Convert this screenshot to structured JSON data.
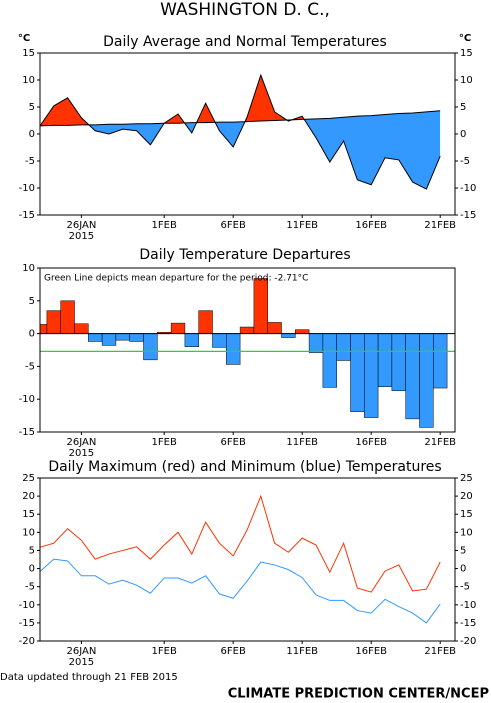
{
  "page": {
    "title": "WASHINGTON D. C.,",
    "updated": "Data updated through 21 FEB 2015",
    "credit": "CLIMATE PREDICTION CENTER/NCEP"
  },
  "chart_data": [
    {
      "type": "departure_area",
      "title": "Daily Average and Normal Temperatures",
      "ylabel": "°C",
      "right_ticks": true,
      "categories": [
        null,
        null,
        null,
        "26JAN",
        null,
        null,
        null,
        null,
        null,
        "1FEB",
        null,
        null,
        null,
        null,
        "6FEB",
        null,
        null,
        null,
        null,
        "11FEB",
        null,
        null,
        null,
        null,
        "16FEB",
        null,
        null,
        null,
        null,
        "21FEB"
      ],
      "year": "2015",
      "above_color": "#ff3300",
      "below_color": "#3399ff",
      "series": [
        {
          "color": "#000000",
          "values": [
            1.5,
            5.2,
            6.7,
            3.0,
            0.6,
            0,
            0.9,
            0.6,
            -2.0,
            2.0,
            3.7,
            0.2,
            5.7,
            0.6,
            -2.4,
            3.1,
            10.9,
            4.1,
            2.4,
            3.3,
            -0.7,
            -5.2,
            -1.3,
            -8.5,
            -9.4,
            -4.4,
            -4.8,
            -8.9,
            -10.2,
            -4.1
          ]
        },
        {
          "color": "#000000",
          "values": [
            1.5,
            1.6,
            1.6,
            1.7,
            1.7,
            1.8,
            1.8,
            1.9,
            1.9,
            2.0,
            2.0,
            2.1,
            2.1,
            2.2,
            2.2,
            2.3,
            2.4,
            2.5,
            2.6,
            2.7,
            2.8,
            2.9,
            3.1,
            3.3,
            3.4,
            3.6,
            3.8,
            3.9,
            4.1,
            4.3
          ]
        }
      ],
      "ylim": [
        -15,
        15
      ],
      "yticks": [
        -15,
        -10,
        -5,
        0,
        5,
        10,
        15
      ]
    },
    {
      "type": "bar",
      "title": "Daily Temperature Departures",
      "categories": [
        null,
        null,
        null,
        "26JAN",
        null,
        null,
        null,
        null,
        null,
        "1FEB",
        null,
        null,
        null,
        null,
        "6FEB",
        null,
        null,
        null,
        null,
        "11FEB",
        null,
        null,
        null,
        null,
        "16FEB",
        null,
        null,
        null,
        null,
        "21FEB"
      ],
      "year": "2015",
      "positive_color": "#ff3300",
      "negative_color": "#3399ff",
      "values": [
        1.4,
        3.5,
        5.0,
        1.5,
        -1.2,
        -1.8,
        -1.0,
        -1.2,
        -4.0,
        0.2,
        1.6,
        -2.0,
        3.5,
        -2.1,
        -4.7,
        1.0,
        8.4,
        1.7,
        -0.6,
        0.6,
        -2.9,
        -8.2,
        -4.1,
        -11.9,
        -12.8,
        -8.1,
        -8.7,
        -13.0,
        -14.3,
        -8.3
      ],
      "annotation": "Green Line depicts mean departure for the period: -2.71°C",
      "mean_line": {
        "value": -2.71,
        "color": "#33cc33"
      },
      "ylim": [
        -15,
        10
      ],
      "yticks": [
        -15,
        -10,
        -5,
        0,
        5,
        10
      ]
    },
    {
      "type": "line",
      "title": "Daily Maximum (red) and Minimum (blue) Temperatures",
      "right_ticks": true,
      "categories": [
        null,
        null,
        null,
        "26JAN",
        null,
        null,
        null,
        null,
        null,
        "1FEB",
        null,
        null,
        null,
        null,
        "6FEB",
        null,
        null,
        null,
        null,
        "11FEB",
        null,
        null,
        null,
        null,
        "16FEB",
        null,
        null,
        null,
        null,
        "21FEB"
      ],
      "year": "2015",
      "series": [
        {
          "color": "#ff3300",
          "values": [
            5.9,
            7.0,
            11.0,
            7.8,
            2.6,
            4.0,
            5.0,
            6.0,
            2.6,
            6.5,
            10.0,
            4.0,
            12.8,
            7.0,
            3.5,
            10.6,
            20.0,
            7.0,
            4.5,
            8.4,
            6.5,
            -1.0,
            7.0,
            -5.4,
            -6.5,
            -0.7,
            1.0,
            -6.2,
            -5.7,
            1.8
          ]
        },
        {
          "color": "#3399ff",
          "values": [
            -0.8,
            2.6,
            2.1,
            -2.0,
            -2.0,
            -4.3,
            -3.2,
            -4.6,
            -6.8,
            -2.6,
            -2.6,
            -4.0,
            -2.0,
            -7.0,
            -8.2,
            -3.5,
            1.8,
            1.0,
            -0.3,
            -2.5,
            -7.3,
            -8.8,
            -8.8,
            -11.6,
            -12.3,
            -8.5,
            -10.5,
            -12.3,
            -15.0,
            -9.8
          ]
        }
      ],
      "ylim": [
        -20,
        25
      ],
      "yticks": [
        -20,
        -15,
        -10,
        -5,
        0,
        5,
        10,
        15,
        20,
        25
      ]
    }
  ]
}
